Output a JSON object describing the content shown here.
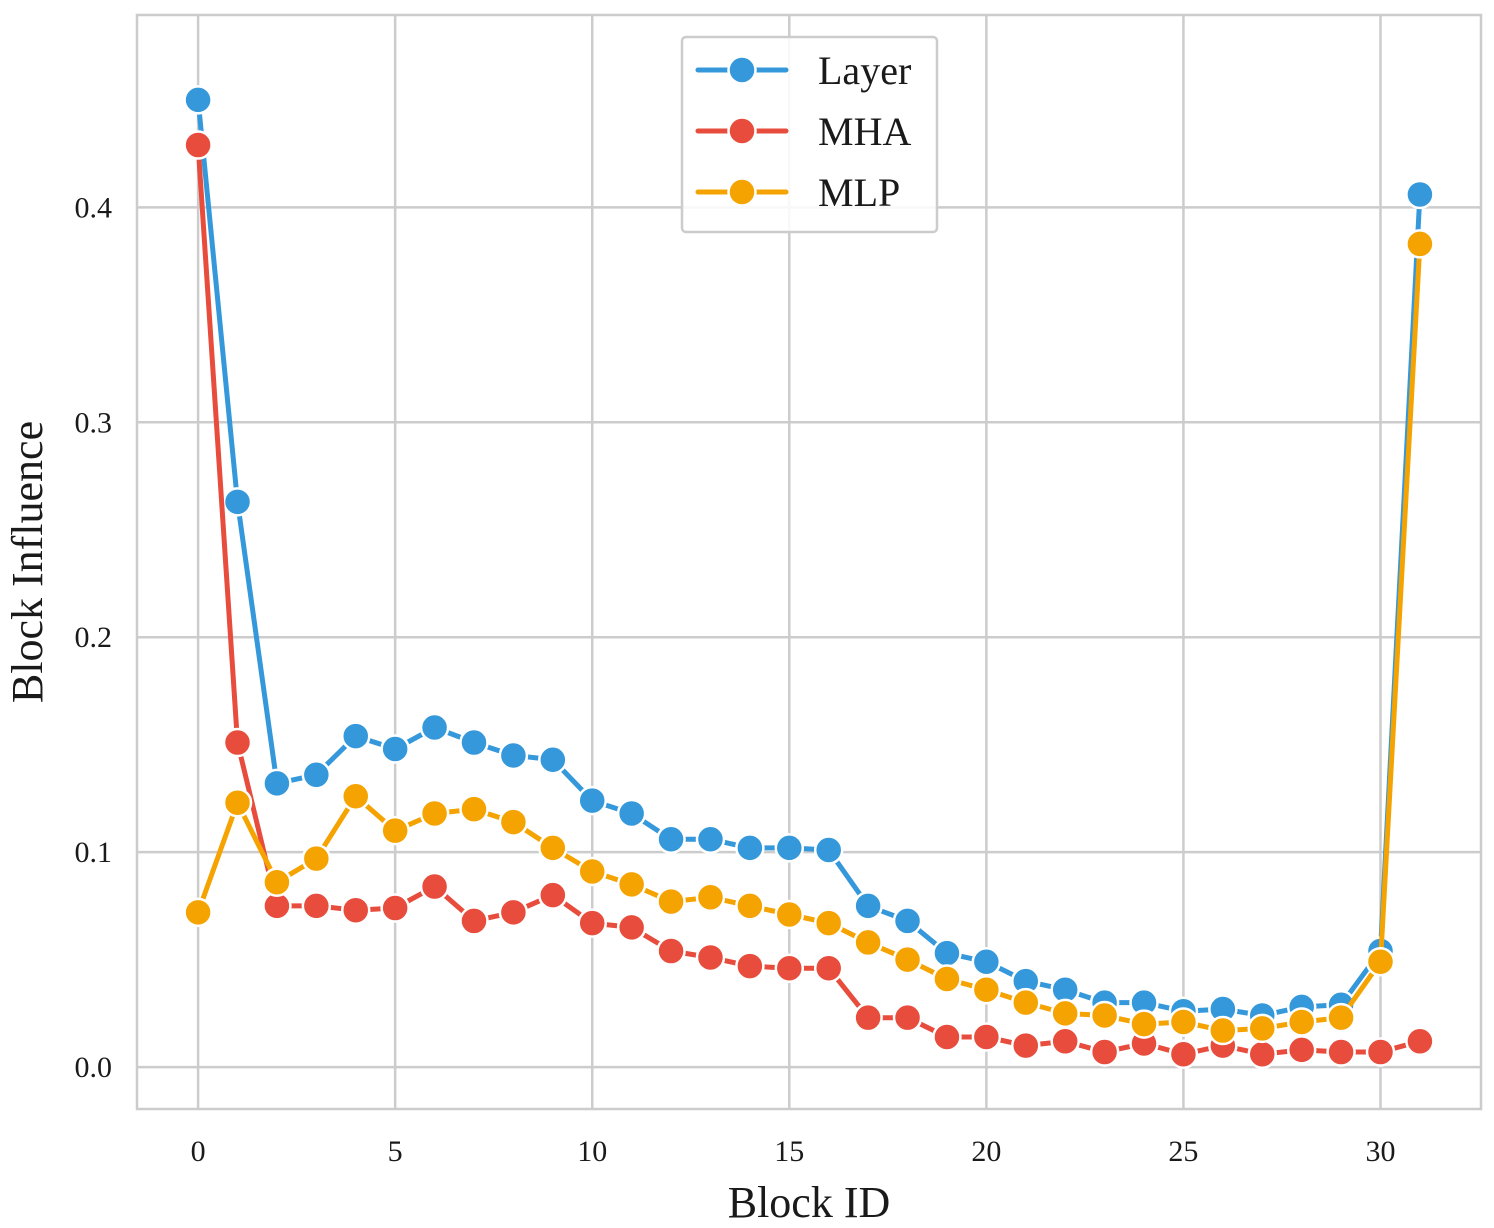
{
  "chart_data": {
    "type": "line",
    "title": "",
    "xlabel": "Block ID",
    "ylabel": "Block Influence",
    "xlim": [
      -1.55,
      32.55
    ],
    "ylim": [
      -0.0195,
      0.4895
    ],
    "x_ticks": [
      0,
      5,
      10,
      15,
      20,
      25,
      30
    ],
    "x_tick_labels": [
      "0",
      "5",
      "10",
      "15",
      "20",
      "25",
      "30"
    ],
    "y_ticks": [
      0.0,
      0.1,
      0.2,
      0.3,
      0.4
    ],
    "y_tick_labels": [
      "0.0",
      "0.1",
      "0.2",
      "0.3",
      "0.4"
    ],
    "grid": true,
    "legend_position": "top-center",
    "x": [
      0,
      1,
      2,
      3,
      4,
      5,
      6,
      7,
      8,
      9,
      10,
      11,
      12,
      13,
      14,
      15,
      16,
      17,
      18,
      19,
      20,
      21,
      22,
      23,
      24,
      25,
      26,
      27,
      28,
      29,
      30,
      31
    ],
    "series": [
      {
        "name": "Layer",
        "color": "#3498db",
        "values": [
          0.45,
          0.263,
          0.132,
          0.136,
          0.154,
          0.148,
          0.158,
          0.151,
          0.145,
          0.143,
          0.124,
          0.118,
          0.106,
          0.106,
          0.102,
          0.102,
          0.101,
          0.075,
          0.068,
          0.053,
          0.049,
          0.04,
          0.036,
          0.03,
          0.03,
          0.026,
          0.027,
          0.024,
          0.028,
          0.029,
          0.054,
          0.406
        ]
      },
      {
        "name": "MHA",
        "color": "#e74c3c",
        "values": [
          0.429,
          0.151,
          0.075,
          0.075,
          0.073,
          0.074,
          0.084,
          0.068,
          0.072,
          0.08,
          0.067,
          0.065,
          0.054,
          0.051,
          0.047,
          0.046,
          0.046,
          0.023,
          0.023,
          0.014,
          0.014,
          0.01,
          0.012,
          0.007,
          0.011,
          0.006,
          0.01,
          0.006,
          0.008,
          0.007,
          0.007,
          0.012
        ]
      },
      {
        "name": "MLP",
        "color": "#f5a300",
        "values": [
          0.072,
          0.123,
          0.086,
          0.097,
          0.126,
          0.11,
          0.118,
          0.12,
          0.114,
          0.102,
          0.091,
          0.085,
          0.077,
          0.079,
          0.075,
          0.071,
          0.067,
          0.058,
          0.05,
          0.041,
          0.036,
          0.03,
          0.025,
          0.024,
          0.02,
          0.021,
          0.017,
          0.018,
          0.021,
          0.023,
          0.049,
          0.383
        ]
      }
    ]
  }
}
